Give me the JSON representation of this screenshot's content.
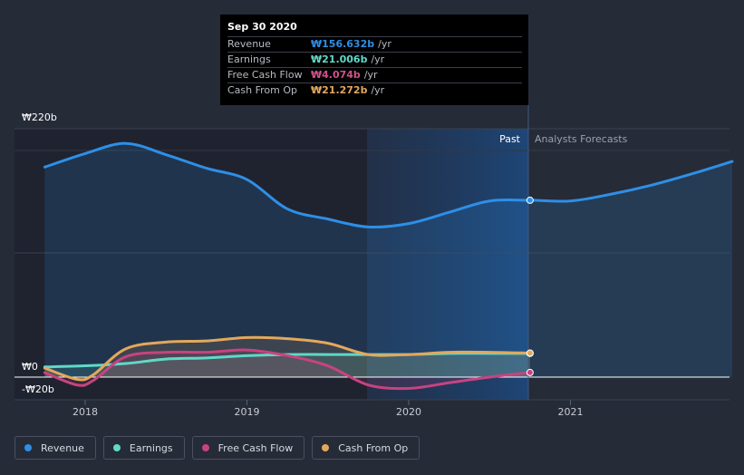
{
  "chart_data": {
    "type": "line",
    "currency": "₩",
    "y_axis": {
      "top_label": "₩220b",
      "zero_label": "₩0",
      "bottom_label": "-₩20b",
      "ylim": [
        -20,
        220
      ]
    },
    "x_axis": {
      "ticks": [
        "2018",
        "2019",
        "2020",
        "2021"
      ],
      "xlim": [
        2017.6,
        2022.0
      ]
    },
    "regions": {
      "past": "Past",
      "forecast": "Analysts Forecasts",
      "divider_x": 2020.75,
      "highlight_start": 2019.75
    },
    "series": [
      {
        "name": "Revenue",
        "color": "#2e8fe6",
        "fill": true,
        "points": [
          [
            2017.75,
            186
          ],
          [
            2018.0,
            198
          ],
          [
            2018.25,
            207
          ],
          [
            2018.5,
            197
          ],
          [
            2018.75,
            185
          ],
          [
            2019.0,
            175
          ],
          [
            2019.25,
            149
          ],
          [
            2019.5,
            140
          ],
          [
            2019.75,
            133
          ],
          [
            2020.0,
            136
          ],
          [
            2020.25,
            146
          ],
          [
            2020.5,
            156
          ],
          [
            2020.75,
            156.632
          ],
          [
            2021.0,
            156
          ],
          [
            2021.25,
            162
          ],
          [
            2021.5,
            170
          ],
          [
            2021.75,
            180
          ],
          [
            2022.0,
            191
          ]
        ],
        "end_marker_x": 2020.75
      },
      {
        "name": "Earnings",
        "color": "#5fd9c8",
        "fill": true,
        "points": [
          [
            2017.75,
            9
          ],
          [
            2018.0,
            10
          ],
          [
            2018.25,
            12
          ],
          [
            2018.5,
            16
          ],
          [
            2018.75,
            17
          ],
          [
            2019.0,
            19
          ],
          [
            2019.25,
            20
          ],
          [
            2019.5,
            20
          ],
          [
            2019.75,
            20
          ],
          [
            2020.0,
            20
          ],
          [
            2020.25,
            21
          ],
          [
            2020.5,
            21
          ],
          [
            2020.75,
            21.006
          ]
        ],
        "end_marker_x": 2020.75
      },
      {
        "name": "Free Cash Flow",
        "color": "#c8437f",
        "fill": true,
        "points": [
          [
            2017.75,
            4
          ],
          [
            2017.95,
            -7
          ],
          [
            2018.05,
            -3
          ],
          [
            2018.25,
            18
          ],
          [
            2018.5,
            22
          ],
          [
            2018.75,
            22
          ],
          [
            2019.0,
            24
          ],
          [
            2019.25,
            19
          ],
          [
            2019.5,
            10
          ],
          [
            2019.75,
            -7
          ],
          [
            2020.0,
            -10
          ],
          [
            2020.25,
            -5
          ],
          [
            2020.5,
            0
          ],
          [
            2020.75,
            4.074
          ]
        ],
        "end_marker_x": 2020.75
      },
      {
        "name": "Cash From Op",
        "color": "#e3a85c",
        "fill": true,
        "points": [
          [
            2017.75,
            8
          ],
          [
            2017.95,
            -2
          ],
          [
            2018.05,
            2
          ],
          [
            2018.25,
            25
          ],
          [
            2018.5,
            31
          ],
          [
            2018.75,
            32
          ],
          [
            2019.0,
            35
          ],
          [
            2019.25,
            34
          ],
          [
            2019.5,
            30
          ],
          [
            2019.75,
            20
          ],
          [
            2020.0,
            20
          ],
          [
            2020.25,
            22
          ],
          [
            2020.5,
            22
          ],
          [
            2020.75,
            21.272
          ]
        ],
        "end_marker_x": 2020.75
      }
    ]
  },
  "tooltip": {
    "title": "Sep 30 2020",
    "rows": [
      {
        "label": "Revenue",
        "value": "₩156.632b",
        "unit": "/yr",
        "color": "#2e8fe6"
      },
      {
        "label": "Earnings",
        "value": "₩21.006b",
        "unit": "/yr",
        "color": "#5fd9c8"
      },
      {
        "label": "Free Cash Flow",
        "value": "₩4.074b",
        "unit": "/yr",
        "color": "#d0508c"
      },
      {
        "label": "Cash From Op",
        "value": "₩21.272b",
        "unit": "/yr",
        "color": "#e3a85c"
      }
    ]
  },
  "legend": [
    {
      "label": "Revenue",
      "color": "#2e8fe6"
    },
    {
      "label": "Earnings",
      "color": "#5fd9c8"
    },
    {
      "label": "Free Cash Flow",
      "color": "#c8437f"
    },
    {
      "label": "Cash From Op",
      "color": "#e3a85c"
    }
  ]
}
